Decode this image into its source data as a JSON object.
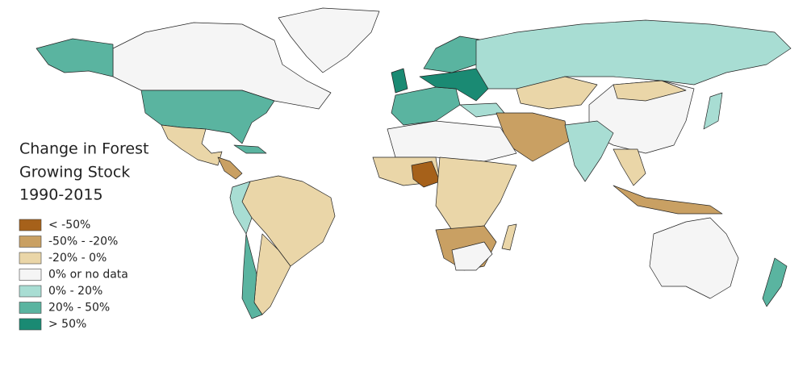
{
  "legend": {
    "title": [
      "Change in Forest",
      "Growing Stock",
      "1990-2015"
    ],
    "items": [
      {
        "label": "< -50%",
        "color": "#a6611a"
      },
      {
        "label": "-50% - -20%",
        "color": "#c9a063"
      },
      {
        "label": "-20% - 0%",
        "color": "#ead6a8"
      },
      {
        "label": "0% or no data",
        "color": "#f5f5f5"
      },
      {
        "label": "0% - 20%",
        "color": "#a8ddd3"
      },
      {
        "label": "20% - 50%",
        "color": "#5ab4a0"
      },
      {
        "label": "> 50%",
        "color": "#1a8a73"
      }
    ]
  }
}
